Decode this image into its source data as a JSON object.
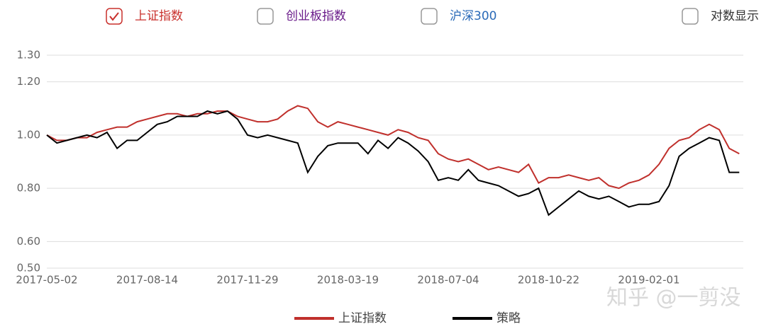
{
  "toggles": [
    {
      "label": "上证指数",
      "color": "#c9302c",
      "checked": true
    },
    {
      "label": "创业板指数",
      "color": "#6a1b8a",
      "checked": false
    },
    {
      "label": "沪深300",
      "color": "#2a6ab8",
      "checked": false
    },
    {
      "label": "对数显示",
      "color": "#333333",
      "checked": false
    }
  ],
  "chart_data": {
    "type": "line",
    "categories": [
      "2017-05-02",
      null,
      null,
      null,
      null,
      null,
      null,
      null,
      null,
      null,
      "2017-08-14",
      null,
      null,
      null,
      null,
      null,
      null,
      null,
      null,
      null,
      "2017-11-29",
      null,
      null,
      null,
      null,
      null,
      null,
      null,
      null,
      null,
      "2018-03-19",
      null,
      null,
      null,
      null,
      null,
      null,
      null,
      null,
      null,
      "2018-07-04",
      null,
      null,
      null,
      null,
      null,
      null,
      null,
      null,
      null,
      "2018-10-22",
      null,
      null,
      null,
      null,
      null,
      null,
      null,
      null,
      null,
      "2019-02-01",
      null,
      null,
      null,
      null,
      null,
      null,
      null,
      null,
      null
    ],
    "series": [
      {
        "name": "上证指数",
        "color": "#c0302c",
        "values": [
          1.0,
          0.98,
          0.98,
          0.99,
          0.99,
          1.01,
          1.02,
          1.03,
          1.03,
          1.05,
          1.06,
          1.07,
          1.08,
          1.08,
          1.07,
          1.08,
          1.08,
          1.09,
          1.09,
          1.07,
          1.06,
          1.05,
          1.05,
          1.06,
          1.09,
          1.11,
          1.1,
          1.05,
          1.03,
          1.05,
          1.04,
          1.03,
          1.02,
          1.01,
          1.0,
          1.02,
          1.01,
          0.99,
          0.98,
          0.93,
          0.91,
          0.9,
          0.91,
          0.89,
          0.87,
          0.88,
          0.87,
          0.86,
          0.89,
          0.82,
          0.84,
          0.84,
          0.85,
          0.84,
          0.83,
          0.84,
          0.81,
          0.8,
          0.82,
          0.83,
          0.85,
          0.89,
          0.95,
          0.98,
          0.99,
          1.02,
          1.04,
          1.02,
          0.95,
          0.93
        ]
      },
      {
        "name": "策略",
        "color": "#000000",
        "values": [
          1.0,
          0.97,
          0.98,
          0.99,
          1.0,
          0.99,
          1.01,
          0.95,
          0.98,
          0.98,
          1.01,
          1.04,
          1.05,
          1.07,
          1.07,
          1.07,
          1.09,
          1.08,
          1.09,
          1.06,
          1.0,
          0.99,
          1.0,
          0.99,
          0.98,
          0.97,
          0.86,
          0.92,
          0.96,
          0.97,
          0.97,
          0.97,
          0.93,
          0.98,
          0.95,
          0.99,
          0.97,
          0.94,
          0.9,
          0.83,
          0.84,
          0.83,
          0.87,
          0.83,
          0.82,
          0.81,
          0.79,
          0.77,
          0.78,
          0.8,
          0.7,
          0.73,
          0.76,
          0.79,
          0.77,
          0.76,
          0.77,
          0.75,
          0.73,
          0.74,
          0.74,
          0.75,
          0.81,
          0.92,
          0.95,
          0.97,
          0.99,
          0.98,
          0.86,
          0.86
        ]
      }
    ],
    "ylim": [
      0.5,
      1.3
    ],
    "yticks": [
      {
        "value": 0.5,
        "label": "0.50"
      },
      {
        "value": 0.6,
        "label": "0.60"
      },
      {
        "value": 0.8,
        "label": "0.80"
      },
      {
        "value": 1.0,
        "label": "1.00"
      },
      {
        "value": 1.2,
        "label": "1.20"
      },
      {
        "value": 1.3,
        "label": "1.30"
      }
    ],
    "grid": true,
    "log_scale": false,
    "legend": "bottom"
  },
  "watermark": "知乎 @一剪没"
}
